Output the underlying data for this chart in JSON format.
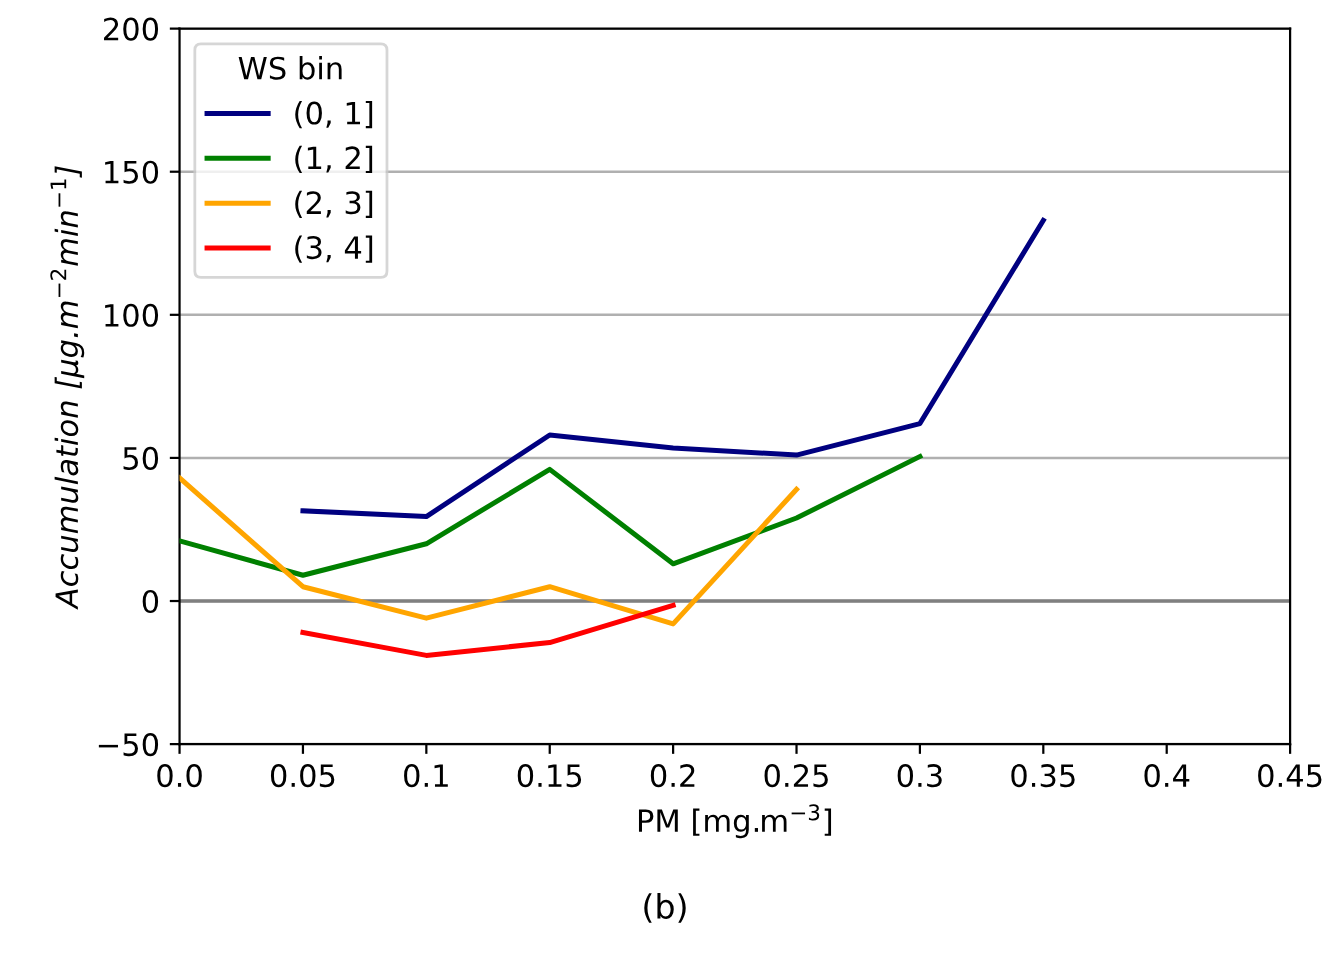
{
  "chart_data": {
    "type": "line",
    "xlabel": "PM [mg.m$^{−3}$]",
    "ylabel": "Accumulation [μg.m$^{−2}$min$^{−1}$]",
    "legend_title": "WS bin",
    "legend": "top left",
    "grid": "y",
    "xlim": [
      0,
      0.45
    ],
    "xticks": [
      {
        "value": 0,
        "label": "0.0"
      },
      0.05,
      {
        "value": 0.1,
        "label": "0.1"
      },
      0.15,
      {
        "value": 0.2,
        "label": "0.2"
      },
      0.25,
      {
        "value": 0.3,
        "label": "0.3"
      },
      0.35,
      {
        "value": 0.4,
        "label": "0.4"
      },
      0.45
    ],
    "ylim": [
      -50,
      200
    ],
    "yticks": [
      {
        "value": -50,
        "label": "−50"
      },
      0,
      50,
      100,
      150,
      200
    ],
    "ref_lines": [
      {
        "axis": "y",
        "value": 0,
        "color": "#808080"
      }
    ],
    "annotations": [
      "(b)"
    ],
    "series": [
      {
        "name": "(0, 1]",
        "color": "#000080",
        "x": [
          0.05,
          0.1,
          0.15,
          0.2,
          0.25,
          0.3,
          0.35
        ],
        "values": [
          31.5,
          29.5,
          58,
          53.5,
          51,
          62,
          133
        ]
      },
      {
        "name": "(1, 2]",
        "color": "#008000",
        "x": [
          0,
          0.05,
          0.1,
          0.15,
          0.2,
          0.25,
          0.3
        ],
        "values": [
          21,
          9,
          20,
          46,
          13,
          29,
          50.5
        ]
      },
      {
        "name": "(2, 3]",
        "color": "#ffa500",
        "x": [
          0,
          0.05,
          0.1,
          0.15,
          0.2,
          0.25
        ],
        "values": [
          43,
          5,
          -6,
          5,
          -8,
          39
        ]
      },
      {
        "name": "(3, 4]",
        "color": "#ff0000",
        "x": [
          0.05,
          0.1,
          0.15,
          0.2
        ],
        "values": [
          -11,
          -19,
          -14.5,
          -1.5
        ]
      }
    ]
  }
}
